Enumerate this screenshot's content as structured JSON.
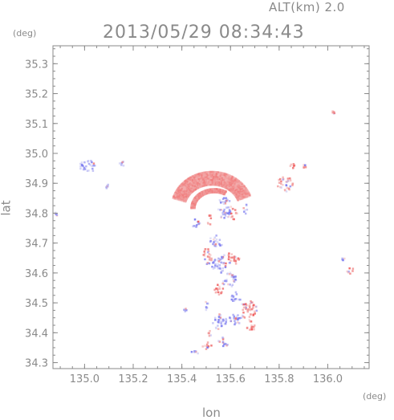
{
  "header": {
    "altitude": "ALT(km) 2.0",
    "timestamp": "2013/05/29 08:34:43"
  },
  "chart_data": {
    "type": "heatmap",
    "title": "2013/05/29 08:34:43",
    "subtitle": "ALT(km) 2.0",
    "xlabel": "lon",
    "ylabel": "lat",
    "x_unit": "(deg)",
    "y_unit": "(deg)",
    "xlim": [
      134.87,
      136.17
    ],
    "ylim": [
      34.28,
      35.36
    ],
    "x_ticks": [
      135.0,
      135.2,
      135.4,
      135.6,
      135.8,
      136.0
    ],
    "x_tick_labels": [
      "135.0",
      "135.2",
      "135.4",
      "135.6",
      "135.8",
      "136.0"
    ],
    "y_ticks": [
      34.3,
      34.4,
      34.5,
      34.6,
      34.7,
      34.8,
      34.9,
      35.0,
      35.1,
      35.2,
      35.3
    ],
    "y_tick_labels": [
      "34.3",
      "34.4",
      "34.5",
      "34.6",
      "34.7",
      "34.8",
      "34.9",
      "35.0",
      "35.1",
      "35.2",
      "35.3"
    ],
    "grid": false,
    "colors": {
      "positive": "#f07070",
      "negative": "#8080f0",
      "axis": "#8a8a8a"
    },
    "clusters": [
      {
        "lon": 135.01,
        "lat": 34.96,
        "rx": 0.035,
        "ry": 0.02,
        "sign": -1
      },
      {
        "lon": 135.15,
        "lat": 34.97,
        "rx": 0.01,
        "ry": 0.01,
        "sign": -1
      },
      {
        "lon": 135.09,
        "lat": 34.89,
        "rx": 0.01,
        "ry": 0.01,
        "sign": -1
      },
      {
        "lon": 134.88,
        "lat": 34.8,
        "rx": 0.01,
        "ry": 0.005,
        "sign": -1
      },
      {
        "lon": 135.45,
        "lat": 34.77,
        "rx": 0.02,
        "ry": 0.015,
        "sign": -1
      },
      {
        "lon": 135.57,
        "lat": 34.82,
        "rx": 0.03,
        "ry": 0.04,
        "sign": -1
      },
      {
        "lon": 135.61,
        "lat": 34.8,
        "rx": 0.015,
        "ry": 0.02,
        "sign": 1
      },
      {
        "lon": 135.66,
        "lat": 34.82,
        "rx": 0.01,
        "ry": 0.02,
        "sign": -1
      },
      {
        "lon": 135.82,
        "lat": 34.9,
        "rx": 0.035,
        "ry": 0.025,
        "sign": 1
      },
      {
        "lon": 135.85,
        "lat": 34.96,
        "rx": 0.01,
        "ry": 0.01,
        "sign": 1
      },
      {
        "lon": 135.9,
        "lat": 34.96,
        "rx": 0.005,
        "ry": 0.005,
        "sign": 1
      },
      {
        "lon": 136.02,
        "lat": 35.14,
        "rx": 0.005,
        "ry": 0.004,
        "sign": 1
      },
      {
        "lon": 136.09,
        "lat": 34.61,
        "rx": 0.02,
        "ry": 0.01,
        "sign": 1
      },
      {
        "lon": 136.06,
        "lat": 34.65,
        "rx": 0.005,
        "ry": 0.005,
        "sign": -1
      },
      {
        "lon": 135.54,
        "lat": 34.71,
        "rx": 0.03,
        "ry": 0.02,
        "sign": -1
      },
      {
        "lon": 135.6,
        "lat": 34.65,
        "rx": 0.04,
        "ry": 0.02,
        "sign": 1
      },
      {
        "lon": 135.55,
        "lat": 34.63,
        "rx": 0.03,
        "ry": 0.03,
        "sign": -1
      },
      {
        "lon": 135.5,
        "lat": 34.66,
        "rx": 0.02,
        "ry": 0.03,
        "sign": 1
      },
      {
        "lon": 135.59,
        "lat": 34.58,
        "rx": 0.03,
        "ry": 0.025,
        "sign": -1
      },
      {
        "lon": 135.55,
        "lat": 34.55,
        "rx": 0.02,
        "ry": 0.02,
        "sign": 1
      },
      {
        "lon": 135.62,
        "lat": 34.52,
        "rx": 0.02,
        "ry": 0.02,
        "sign": -1
      },
      {
        "lon": 135.67,
        "lat": 34.48,
        "rx": 0.035,
        "ry": 0.03,
        "sign": 1
      },
      {
        "lon": 135.62,
        "lat": 34.45,
        "rx": 0.03,
        "ry": 0.02,
        "sign": -1
      },
      {
        "lon": 135.68,
        "lat": 34.43,
        "rx": 0.02,
        "ry": 0.02,
        "sign": 1
      },
      {
        "lon": 135.55,
        "lat": 34.44,
        "rx": 0.03,
        "ry": 0.025,
        "sign": -1
      },
      {
        "lon": 135.5,
        "lat": 34.49,
        "rx": 0.01,
        "ry": 0.02,
        "sign": -1
      },
      {
        "lon": 135.51,
        "lat": 34.4,
        "rx": 0.01,
        "ry": 0.01,
        "sign": 1
      },
      {
        "lon": 135.5,
        "lat": 34.36,
        "rx": 0.02,
        "ry": 0.012,
        "sign": 1
      },
      {
        "lon": 135.45,
        "lat": 34.34,
        "rx": 0.02,
        "ry": 0.008,
        "sign": -1
      },
      {
        "lon": 135.56,
        "lat": 34.38,
        "rx": 0.02,
        "ry": 0.01,
        "sign": 1
      },
      {
        "lon": 135.58,
        "lat": 34.36,
        "rx": 0.015,
        "ry": 0.008,
        "sign": -1
      },
      {
        "lon": 135.41,
        "lat": 34.48,
        "rx": 0.005,
        "ry": 0.005,
        "sign": -1
      },
      {
        "lon": 135.51,
        "lat": 34.78,
        "rx": 0.01,
        "ry": 0.02,
        "sign": 1
      }
    ],
    "arcs": [
      {
        "lon": 135.52,
        "lat": 34.82,
        "r_lon": 0.14,
        "r_lat": 0.1,
        "from_deg": 20,
        "to_deg": 165,
        "width": 16,
        "sign": 1
      },
      {
        "lon": 135.53,
        "lat": 34.82,
        "r_lon": 0.09,
        "r_lat": 0.06,
        "from_deg": 60,
        "to_deg": 180,
        "width": 5,
        "sign": 1
      }
    ]
  }
}
